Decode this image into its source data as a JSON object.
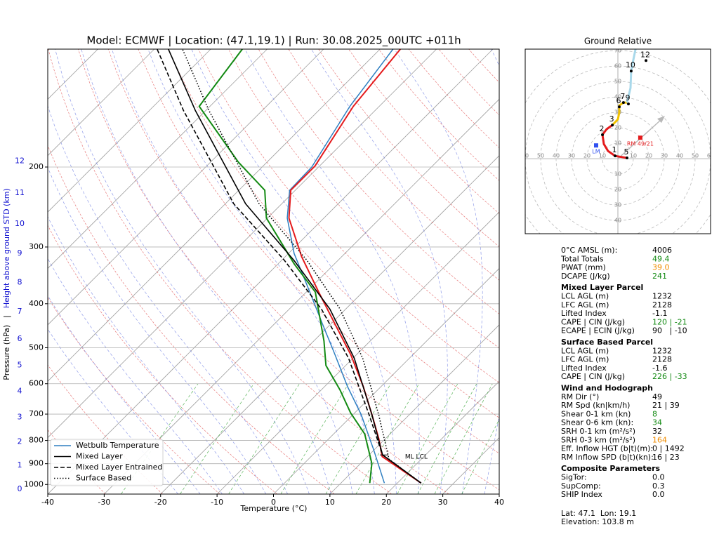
{
  "chart_data": [
    {
      "type": "skewt",
      "title": "Model: ECMWF | Location: (47.1,19.1) | Run: 30.08.2025_00UTC +011h",
      "xlabel": "Temperature (°C)",
      "ylabel": "Pressure (hPa)",
      "ylabel_separator": "|",
      "y2label": "Height above ground STD (km)",
      "xlim": [
        -40,
        40
      ],
      "xticks": [
        -40,
        -30,
        -20,
        -10,
        0,
        10,
        20,
        30,
        40
      ],
      "ylim": [
        1050,
        110
      ],
      "log_y": true,
      "yticks": [
        1000,
        900,
        800,
        700,
        600,
        500,
        400,
        300,
        200
      ],
      "grid": true,
      "height_ticks": [
        0,
        1,
        2,
        3,
        4,
        5,
        6,
        7,
        8,
        9,
        10,
        11,
        12
      ],
      "height_tick_pressures": [
        1025,
        908,
        805,
        711,
        623,
        547,
        478,
        416,
        359,
        310,
        267,
        228,
        194
      ],
      "temperature": {
        "color": "#e41a1c",
        "pressure": [
          993,
          868,
          794,
          701,
          608,
          518,
          442,
          377,
          315,
          259,
          225,
          199,
          147,
          110
        ],
        "values": [
          24.2,
          12.6,
          8.9,
          3.3,
          -3.2,
          -11.0,
          -19.4,
          -27.8,
          -37.1,
          -46.2,
          -50.8,
          -50.8,
          -54.6,
          -56.4
        ]
      },
      "dewpoint": {
        "color": "#138a13",
        "pressure": [
          993,
          899,
          774,
          696,
          619,
          547,
          483,
          377,
          327,
          259,
          225,
          195,
          147,
          110
        ],
        "values": [
          15.1,
          12.0,
          5.5,
          -0.7,
          -6.7,
          -13.5,
          -18.2,
          -28.4,
          -37.1,
          -50.2,
          -55.4,
          -65.1,
          -81.9,
          -84.4
        ]
      },
      "series": [
        {
          "name": "Wetbulb Temperature",
          "color": "#2f7fc1",
          "style": "solid",
          "pressure": [
            993,
            837,
            701,
            608,
            518,
            442,
            370,
            310,
            259,
            225,
            200,
            147,
            110
          ],
          "values": [
            17.7,
            9.8,
            1.4,
            -6.0,
            -13.8,
            -21.6,
            -30.3,
            -39.0,
            -46.5,
            -51.0,
            -51.2,
            -55.2,
            -57.7
          ]
        },
        {
          "name": "Mixed Layer",
          "color": "#000000",
          "style": "solid",
          "pressure": [
            993,
            861,
            701,
            527,
            411,
            321,
            241,
            150,
            110
          ],
          "values": [
            24.2,
            12.4,
            3.3,
            -9.8,
            -22.8,
            -37.8,
            -56.4,
            -81.9,
            -97.5
          ]
        },
        {
          "name": "Mixed Layer Entrained",
          "color": "#000000",
          "style": "dashed",
          "pressure": [
            993,
            861,
            701,
            527,
            411,
            321,
            241,
            150,
            110
          ],
          "values": [
            24.2,
            12.4,
            2.8,
            -10.8,
            -24.3,
            -39.5,
            -58.5,
            -84.0,
            -99.5
          ]
        },
        {
          "name": "Surface Based",
          "color": "#000000",
          "style": "dotted",
          "pressure": [
            993,
            880,
            701,
            527,
            411,
            321,
            241,
            150,
            110
          ],
          "values": [
            24.2,
            14.3,
            4.5,
            -8.3,
            -21.0,
            -35.5,
            -54.0,
            -79.5,
            -95.0
          ]
        }
      ],
      "legend": "lower left",
      "annotations": [
        {
          "text": "ML LCL",
          "pressure": 861,
          "temperature": 12.4
        }
      ]
    },
    {
      "type": "hodograph",
      "title": "Ground Relative",
      "xlim": [
        -60,
        60
      ],
      "ylim": [
        -48.6,
        71
      ],
      "rings": [
        10,
        20,
        30,
        40,
        50,
        60,
        70
      ],
      "segments": [
        {
          "color": "#e41a1c",
          "u": [
            5.9,
            -1.8,
            -6.4,
            -9.1,
            -10,
            -7.3,
            -3.6
          ],
          "v": [
            0.5,
            1.8,
            5,
            9.5,
            15.5,
            19.1,
            21.8
          ]
        },
        {
          "color": "#f2c200",
          "u": [
            -3.6,
            0,
            0.9,
            0.9,
            3.6,
            5.9
          ],
          "v": [
            21.8,
            25.5,
            30,
            34.5,
            36.4,
            36.4
          ]
        },
        {
          "color": "#a8d8ea",
          "u": [
            5.9,
            8.2,
            8.6,
            10,
            11.4
          ],
          "v": [
            36.4,
            45.9,
            56.8,
            64.1,
            70.9
          ]
        }
      ],
      "levels": {
        "labels": [
          1,
          2,
          3,
          5,
          6,
          7,
          9,
          10,
          12
        ],
        "u": [
          -1.8,
          -10,
          -3.6,
          5.9,
          0.9,
          3.6,
          6.8,
          8.6,
          18.2
        ],
        "v": [
          1.8,
          15.5,
          21.8,
          0.5,
          33.6,
          36.4,
          35.5,
          56.8,
          63.6
        ]
      },
      "markers": [
        {
          "label": "RM 49/21",
          "color": "#e41a1c",
          "u": 14.5,
          "v": 13.6
        },
        {
          "label": "LM",
          "color": "#3050f0",
          "u": -14.1,
          "v": 8.6
        }
      ]
    }
  ],
  "parameters": {
    "sections": [
      {
        "rows": [
          {
            "label": "0°C AMSL (m):",
            "value": "4006",
            "color": "#000000"
          },
          {
            "label": "Total Totals",
            "value": "49.4",
            "color": "#138a13"
          },
          {
            "label": "PWAT (mm)",
            "value": "39.0",
            "color": "#f08c00"
          },
          {
            "label": "DCAPE (J/kg)",
            "value": "241",
            "color": "#138a13"
          }
        ]
      },
      {
        "title": "Mixed Layer Parcel",
        "rows": [
          {
            "label": "LCL AGL (m)",
            "value": "1232",
            "color": "#000000"
          },
          {
            "label": "LFC AGL (m)",
            "value": "2128",
            "color": "#000000"
          },
          {
            "label": "Lifted Index",
            "value": "-1.1",
            "color": "#000000"
          },
          {
            "label": "CAPE | CIN (J/kg)",
            "value": "120 | -21",
            "color": "#138a13"
          },
          {
            "label": "ECAPE | ECIN (J/kg)",
            "value": "90   | -10",
            "color": "#000000"
          }
        ]
      },
      {
        "title": "Surface Based Parcel",
        "rows": [
          {
            "label": "LCL AGL (m)",
            "value": "1232",
            "color": "#000000"
          },
          {
            "label": "LFC AGL (m)",
            "value": "2128",
            "color": "#000000"
          },
          {
            "label": "Lifted Index",
            "value": "-1.6",
            "color": "#000000"
          },
          {
            "label": "CAPE | CIN (J/kg)",
            "value": "226 | -33",
            "color": "#138a13"
          }
        ]
      },
      {
        "title": "Wind and Hodograph",
        "rows": [
          {
            "label": "RM Dir (°)",
            "value": "49",
            "color": "#000000"
          },
          {
            "label": "RM Spd (kn|km/h)",
            "value": "21 | 39",
            "color": "#000000"
          },
          {
            "label": "Shear 0-1 km (kn)",
            "value": "8",
            "color": "#138a13"
          },
          {
            "label": "Shear 0-6 km (kn):",
            "value": "34",
            "color": "#138a13"
          },
          {
            "label": "SRH 0-1 km (m²/s²)",
            "value": "32",
            "color": "#000000"
          },
          {
            "label": "SRH 0-3 km (m²/s²)",
            "value": "164",
            "color": "#f08c00"
          },
          {
            "label": "Eff. Inflow HGT (b|t)(m):",
            "value": "0 | 1492",
            "color": "#000000"
          },
          {
            "label": "RM Inflow SPD (b|t)(kn):",
            "value": "16 | 23",
            "color": "#000000"
          }
        ]
      },
      {
        "title": "Composite Parameters",
        "rows": [
          {
            "label": "SigTor:",
            "value": "0.0",
            "color": "#000000"
          },
          {
            "label": "SupComp:",
            "value": "0.3",
            "color": "#000000"
          },
          {
            "label": "SHIP Index",
            "value": "0.0",
            "color": "#000000"
          }
        ]
      }
    ]
  },
  "footer": {
    "lines": [
      "Lat: 47.1  Lon: 19.1",
      "Elevation: 103.8 m"
    ]
  }
}
